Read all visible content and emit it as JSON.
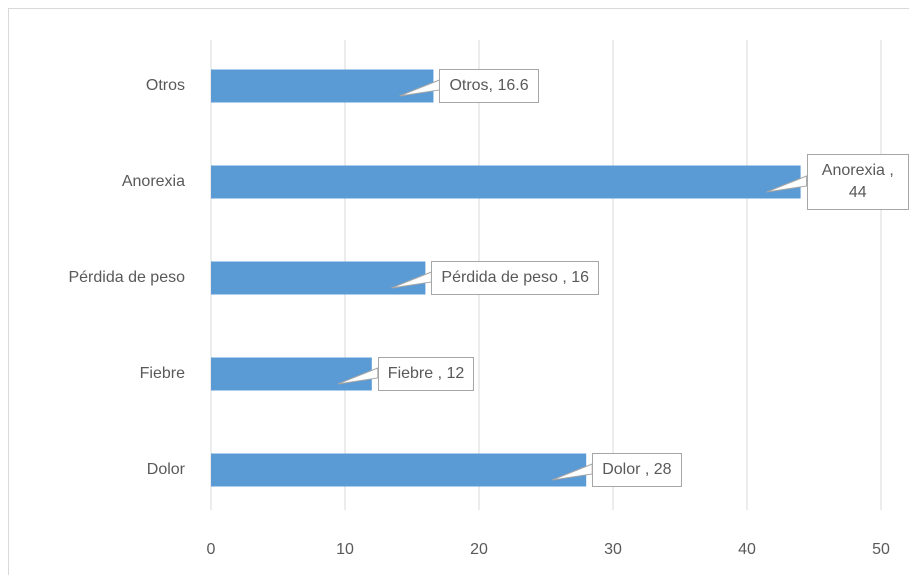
{
  "chart_data": {
    "type": "hbar",
    "categories": [
      "Dolor",
      "Fiebre",
      "Pérdida de peso",
      "Anorexia",
      "Otros"
    ],
    "values": [
      28,
      12,
      16,
      44,
      16.6
    ],
    "value_labels": [
      "Dolor , 28",
      "Fiebre , 12",
      "Pérdida de peso , 16",
      "Anorexia , 44",
      "Otros, 16.6"
    ],
    "color": "#5b9bd5",
    "xlim": [
      0,
      50
    ],
    "xticks": [
      0,
      10,
      20,
      30,
      40,
      50
    ],
    "grid": true
  }
}
